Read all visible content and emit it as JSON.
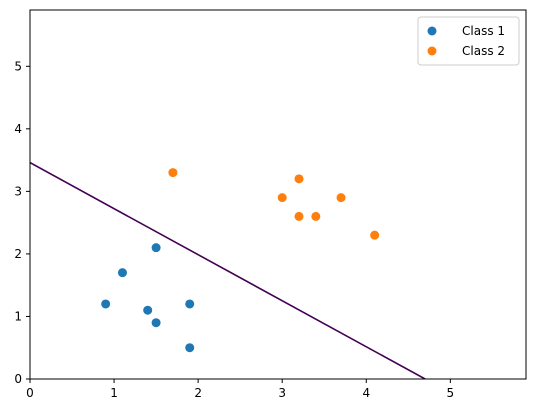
{
  "chart_data": {
    "type": "scatter",
    "title": "",
    "xlabel": "",
    "ylabel": "",
    "xlim": [
      0,
      5.9
    ],
    "ylim": [
      0,
      5.9
    ],
    "xticks": [
      0,
      1,
      2,
      3,
      4,
      5
    ],
    "yticks": [
      0,
      1,
      2,
      3,
      4,
      5
    ],
    "grid": false,
    "legend_position": "top-right",
    "series": [
      {
        "name": "Class 1",
        "color": "#1f77b4",
        "points": [
          [
            0.9,
            1.2
          ],
          [
            1.1,
            1.7
          ],
          [
            1.4,
            1.1
          ],
          [
            1.5,
            0.9
          ],
          [
            1.5,
            2.1
          ],
          [
            1.9,
            1.2
          ],
          [
            1.9,
            0.5
          ]
        ]
      },
      {
        "name": "Class 2",
        "color": "#ff7f0e",
        "points": [
          [
            1.7,
            3.3
          ],
          [
            3.0,
            2.9
          ],
          [
            3.2,
            3.2
          ],
          [
            3.2,
            2.6
          ],
          [
            3.4,
            2.6
          ],
          [
            3.7,
            2.9
          ],
          [
            4.1,
            2.3
          ]
        ]
      }
    ],
    "decision_boundary": {
      "color": "#440154",
      "points": [
        [
          0,
          3.46
        ],
        [
          4.7,
          0
        ]
      ]
    }
  }
}
